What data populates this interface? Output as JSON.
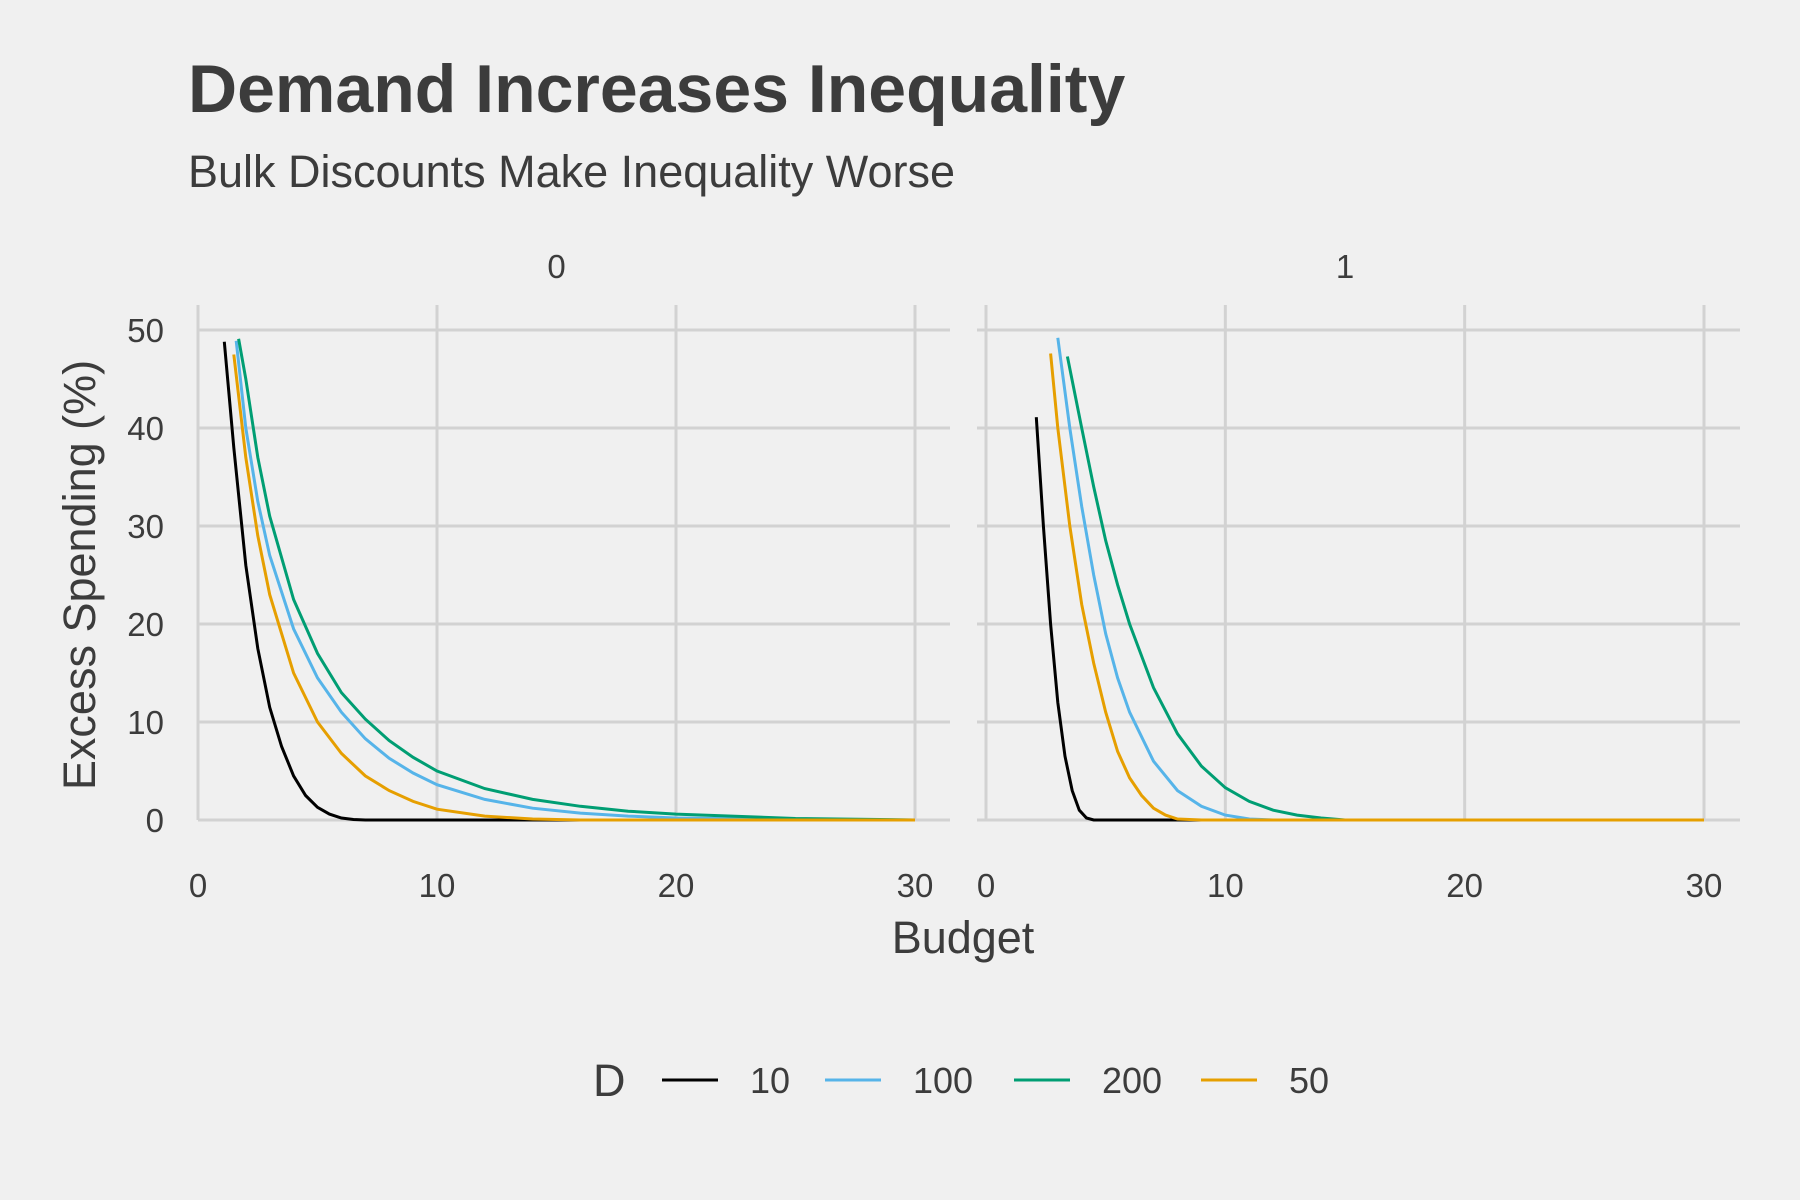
{
  "chart_data": {
    "type": "line",
    "title": "Demand Increases Inequality",
    "subtitle": "Bulk Discounts Make Inequality Worse",
    "xlabel": "Budget",
    "ylabel": "Excess Spending (%)",
    "xlim": [
      0,
      30
    ],
    "ylim": [
      0,
      50
    ],
    "xticks": [
      "0",
      "10",
      "20",
      "30"
    ],
    "yticks": [
      "0",
      "10",
      "20",
      "30",
      "40",
      "50"
    ],
    "grid": true,
    "legend": {
      "title": "D",
      "position": "bottom",
      "entries": [
        "10",
        "100",
        "200",
        "50"
      ]
    },
    "colors": {
      "10": "#000000",
      "100": "#56b4e9",
      "200": "#009e73",
      "50": "#e69f00"
    },
    "facets": [
      {
        "label": "0",
        "series": [
          {
            "name": "10",
            "x": [
              1.1,
              1.5,
              2,
              2.5,
              3,
              3.5,
              4,
              4.5,
              5,
              5.5,
              6,
              6.5,
              7,
              10,
              15,
              20,
              25,
              30
            ],
            "y": [
              48.8,
              38,
              26,
              17.5,
              11.5,
              7.5,
              4.5,
              2.5,
              1.3,
              0.6,
              0.2,
              0.05,
              0,
              0,
              0,
              0,
              0,
              0
            ]
          },
          {
            "name": "100",
            "x": [
              1.6,
              2,
              2.5,
              3,
              4,
              5,
              6,
              7,
              8,
              9,
              10,
              12,
              14,
              16,
              18,
              20,
              25,
              30
            ],
            "y": [
              48.9,
              40,
              32.5,
              27,
              19.5,
              14.5,
              11,
              8.3,
              6.3,
              4.8,
              3.6,
              2.1,
              1.2,
              0.7,
              0.4,
              0.2,
              0.05,
              0
            ]
          },
          {
            "name": "200",
            "x": [
              1.7,
              2,
              2.5,
              3,
              4,
              5,
              6,
              7,
              8,
              9,
              10,
              12,
              14,
              16,
              18,
              20,
              25,
              30
            ],
            "y": [
              49.1,
              45,
              37,
              31,
              22.5,
              17,
              13,
              10.3,
              8.1,
              6.4,
              5,
              3.2,
              2.1,
              1.4,
              0.9,
              0.6,
              0.15,
              0
            ]
          },
          {
            "name": "50",
            "x": [
              1.5,
              2,
              2.5,
              3,
              4,
              5,
              6,
              7,
              8,
              9,
              10,
              12,
              14,
              16,
              20,
              25,
              30
            ],
            "y": [
              47.5,
              37,
              29,
              23,
              15,
              10,
              6.8,
              4.5,
              3,
              1.9,
              1.1,
              0.4,
              0.1,
              0,
              0,
              0,
              0
            ]
          }
        ]
      },
      {
        "label": "1",
        "series": [
          {
            "name": "10",
            "x": [
              2.1,
              2.4,
              2.7,
              3,
              3.3,
              3.6,
              3.9,
              4.2,
              4.5,
              10,
              20,
              30
            ],
            "y": [
              41.1,
              30,
              20,
              12,
              6.5,
              3,
              1,
              0.2,
              0,
              0,
              0,
              0
            ]
          },
          {
            "name": "100",
            "x": [
              3,
              3.5,
              4,
              4.5,
              5,
              5.5,
              6,
              7,
              8,
              9,
              10,
              11,
              12,
              20,
              30
            ],
            "y": [
              49.2,
              40,
              32,
              25,
              19,
              14.5,
              11,
              6,
              3,
              1.4,
              0.5,
              0.1,
              0,
              0,
              0
            ]
          },
          {
            "name": "200",
            "x": [
              3.4,
              4,
              4.5,
              5,
              5.5,
              6,
              7,
              8,
              9,
              10,
              11,
              12,
              13,
              14,
              15,
              20,
              30
            ],
            "y": [
              47.3,
              40,
              34,
              28.5,
              24,
              20,
              13.5,
              8.8,
              5.5,
              3.3,
              1.9,
              1,
              0.5,
              0.2,
              0,
              0,
              0
            ]
          },
          {
            "name": "50",
            "x": [
              2.7,
              3,
              3.5,
              4,
              4.5,
              5,
              5.5,
              6,
              6.5,
              7,
              7.5,
              8,
              9,
              10,
              20,
              30
            ],
            "y": [
              47.6,
              40,
              30,
              22,
              16,
              11,
              7,
              4.3,
              2.5,
              1.2,
              0.5,
              0.1,
              0,
              0,
              0,
              0
            ]
          }
        ]
      }
    ]
  }
}
